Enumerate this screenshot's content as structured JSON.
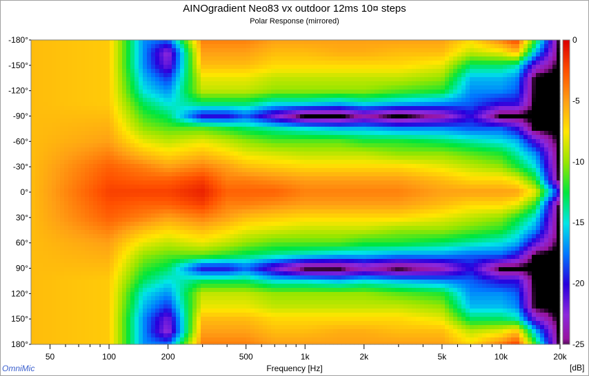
{
  "header": {
    "title": "AINOgradient Neo83 vx outdoor 12ms 10¤ steps",
    "subtitle": "Polar Response (mirrored)"
  },
  "footer": {
    "credit": "OmniMic",
    "xlabel": "Frequency [Hz]"
  },
  "chart_data": {
    "type": "heatmap",
    "title": "AINOgradient Neo83 vx outdoor 12ms 10¤ steps",
    "subtitle": "Polar Response (mirrored)",
    "xlabel": "Frequency [Hz]",
    "x_scale": "log",
    "xlim": [
      40,
      20000
    ],
    "xticks": [
      50,
      100,
      200,
      500,
      1000,
      2000,
      5000,
      10000,
      20000
    ],
    "xtick_labels": [
      "50",
      "100",
      "200",
      "500",
      "1k",
      "2k",
      "5k",
      "10k",
      "20k"
    ],
    "ylim": [
      -180,
      180
    ],
    "yticks": [
      -180,
      -150,
      -120,
      -90,
      -60,
      -30,
      0,
      30,
      60,
      90,
      120,
      150,
      180
    ],
    "ytick_labels": [
      "-180°",
      "-150°",
      "-120°",
      "-90°",
      "-60°",
      "-30°",
      "0°",
      "30°",
      "60°",
      "90°",
      "120°",
      "150°",
      "180°"
    ],
    "colorbar": {
      "label": "[dB]",
      "range": [
        -25,
        0
      ],
      "ticks": [
        0,
        -5,
        -10,
        -15,
        -20,
        -25
      ],
      "tick_labels": [
        "0",
        "-5",
        "-10",
        "-15",
        "-20",
        "-25"
      ]
    },
    "mirrored": true,
    "z_grid_db": {
      "freq_hz": [
        40,
        100,
        150,
        200,
        300,
        400,
        500,
        700,
        1000,
        1500,
        2000,
        3000,
        5000,
        7000,
        10000,
        12000,
        15000,
        20000
      ],
      "angle_deg": [
        0,
        15,
        30,
        45,
        60,
        75,
        90,
        105,
        120,
        135,
        150,
        165,
        180
      ],
      "values": [
        [
          -6,
          -6,
          -6,
          -6,
          -6,
          -6,
          -6,
          -6,
          -6,
          -6,
          -6,
          -6,
          -6
        ],
        [
          -2,
          -2.5,
          -3,
          -4,
          -5,
          -5.5,
          -6,
          -6.5,
          -6.5,
          -6.5,
          -6.5,
          -6.5,
          -6.5
        ],
        [
          -2,
          -3,
          -4,
          -6,
          -8,
          -10,
          -11.5,
          -13,
          -15,
          -16,
          -17,
          -17,
          -17
        ],
        [
          -2,
          -3,
          -5,
          -7,
          -9,
          -11,
          -13,
          -15,
          -17,
          -19,
          -22,
          -23,
          -18
        ],
        [
          -1,
          -2,
          -4,
          -6,
          -8,
          -11,
          -20,
          -13,
          -9,
          -8,
          -6,
          -5,
          -4
        ],
        [
          -3,
          -4,
          -5,
          -7,
          -9,
          -12,
          -20,
          -13,
          -9,
          -8,
          -6,
          -5,
          -4
        ],
        [
          -3,
          -4,
          -6,
          -8,
          -10,
          -13,
          -18,
          -13,
          -9,
          -8,
          -6,
          -5,
          -4
        ],
        [
          -3,
          -4.5,
          -6.5,
          -8.5,
          -11,
          -14,
          -22,
          -15,
          -10,
          -9,
          -7,
          -6,
          -5
        ],
        [
          -4,
          -5,
          -7,
          -9,
          -11,
          -15,
          -26,
          -15,
          -10,
          -9,
          -7,
          -6,
          -5
        ],
        [
          -4,
          -5,
          -7,
          -9,
          -11,
          -16,
          -26,
          -16,
          -10,
          -9,
          -7,
          -5.5,
          -5
        ],
        [
          -4,
          -5,
          -7,
          -9,
          -12,
          -16,
          -24,
          -15,
          -10,
          -9,
          -7,
          -5.5,
          -5
        ],
        [
          -4,
          -5,
          -7,
          -10,
          -12,
          -17,
          -26,
          -16,
          -11,
          -9,
          -7,
          -6,
          -5
        ],
        [
          -5,
          -6,
          -8,
          -10,
          -13,
          -17,
          -24,
          -17,
          -12,
          -10,
          -8,
          -6,
          -5
        ],
        [
          -5,
          -7,
          -9,
          -11,
          -14,
          -18,
          -20,
          -18,
          -17,
          -16,
          -13,
          -9,
          -7
        ],
        [
          -5,
          -7,
          -10,
          -12,
          -15,
          -18,
          -26,
          -20,
          -17,
          -16,
          -13,
          -8,
          -4
        ],
        [
          -5,
          -8,
          -12,
          -14,
          -16,
          -20,
          -26,
          -20,
          -18,
          -17,
          -14,
          -6,
          -2
        ],
        [
          -8,
          -12,
          -15,
          -17,
          -21,
          -26,
          -26,
          -26,
          -26,
          -26,
          -22,
          -16,
          -12
        ],
        [
          -20,
          -26,
          -26,
          -26,
          -26,
          -26,
          -26,
          -26,
          -26,
          -26,
          -26,
          -26,
          -26
        ]
      ]
    }
  }
}
